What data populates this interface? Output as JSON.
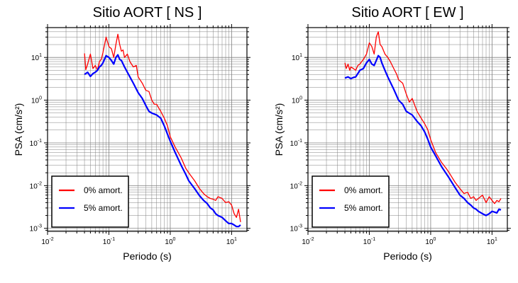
{
  "chart_data": [
    {
      "type": "line",
      "title": "Sitio AORT [ NS ]",
      "xlabel": "Periodo (s)",
      "ylabel": "PSA (cm/s²)",
      "x_scale": "log",
      "y_scale": "log",
      "xlim": [
        0.01,
        17.78
      ],
      "ylim": [
        0.00085,
        50
      ],
      "x_ticks": [
        {
          "base": "10",
          "exp": "-2"
        },
        {
          "base": "10",
          "exp": "-1"
        },
        {
          "base": "10",
          "exp": "0"
        },
        {
          "base": "10",
          "exp": "1"
        }
      ],
      "y_ticks": [
        {
          "base": "10",
          "exp": "-3"
        },
        {
          "base": "10",
          "exp": "-2"
        },
        {
          "base": "10",
          "exp": "-1"
        },
        {
          "base": "10",
          "exp": "0"
        },
        {
          "base": "10",
          "exp": "1"
        }
      ],
      "grid": true,
      "legend": "bottom-left",
      "series": [
        {
          "name": "0% amort.",
          "color": "#ff0000",
          "x": [
            0.04,
            0.042,
            0.045,
            0.05,
            0.055,
            0.06,
            0.065,
            0.07,
            0.075,
            0.08,
            0.09,
            0.1,
            0.11,
            0.12,
            0.13,
            0.14,
            0.15,
            0.16,
            0.17,
            0.18,
            0.2,
            0.22,
            0.25,
            0.28,
            0.3,
            0.35,
            0.4,
            0.45,
            0.5,
            0.55,
            0.6,
            0.7,
            0.8,
            0.9,
            1.0,
            1.2,
            1.5,
            1.8,
            2.0,
            2.5,
            3.0,
            3.5,
            4.0,
            4.5,
            5.0,
            5.5,
            6.0,
            7.0,
            8.0,
            9.0,
            10.0,
            11.0,
            12.0,
            13.0,
            14.0
          ],
          "y": [
            12.5,
            5.2,
            7.0,
            12.0,
            5.5,
            6.5,
            5.0,
            8.0,
            9.0,
            13.0,
            30.0,
            18.0,
            16.0,
            10.0,
            20.0,
            35.0,
            20.0,
            14.0,
            15.0,
            10.0,
            12.0,
            8.0,
            6.0,
            6.5,
            3.5,
            2.5,
            1.7,
            1.6,
            1.0,
            0.8,
            0.8,
            0.55,
            0.38,
            0.25,
            0.14,
            0.08,
            0.045,
            0.025,
            0.02,
            0.013,
            0.0085,
            0.0065,
            0.0055,
            0.005,
            0.0048,
            0.0045,
            0.0055,
            0.005,
            0.004,
            0.0042,
            0.0035,
            0.0022,
            0.0018,
            0.0028,
            0.0014
          ]
        },
        {
          "name": "5% amort.",
          "color": "#0000ff",
          "x": [
            0.04,
            0.045,
            0.05,
            0.055,
            0.06,
            0.065,
            0.07,
            0.075,
            0.08,
            0.09,
            0.1,
            0.11,
            0.12,
            0.13,
            0.14,
            0.15,
            0.16,
            0.18,
            0.2,
            0.25,
            0.3,
            0.35,
            0.4,
            0.45,
            0.5,
            0.6,
            0.7,
            0.8,
            0.9,
            1.0,
            1.2,
            1.5,
            1.8,
            2.0,
            2.5,
            3.0,
            3.5,
            4.0,
            4.5,
            5.0,
            5.5,
            6.0,
            7.0,
            8.0,
            9.0,
            10.0,
            11.0,
            12.0,
            13.0,
            14.0
          ],
          "y": [
            4.0,
            4.5,
            3.6,
            4.2,
            4.5,
            5.0,
            6.0,
            6.5,
            7.5,
            11.0,
            10.0,
            8.5,
            7.0,
            10.0,
            11.5,
            9.0,
            8.5,
            6.0,
            4.5,
            2.5,
            1.5,
            1.1,
            0.75,
            0.55,
            0.5,
            0.45,
            0.38,
            0.25,
            0.16,
            0.11,
            0.06,
            0.03,
            0.018,
            0.013,
            0.0085,
            0.0058,
            0.0045,
            0.0038,
            0.003,
            0.0027,
            0.0022,
            0.002,
            0.0018,
            0.0015,
            0.0013,
            0.0013,
            0.0012,
            0.0011,
            0.0011,
            0.0012
          ]
        }
      ]
    },
    {
      "type": "line",
      "title": "Sitio AORT [ EW ]",
      "xlabel": "Periodo (s)",
      "ylabel": "PSA (cm/s²)",
      "x_scale": "log",
      "y_scale": "log",
      "xlim": [
        0.01,
        17.78
      ],
      "ylim": [
        0.00085,
        50
      ],
      "x_ticks": [
        {
          "base": "10",
          "exp": "-2"
        },
        {
          "base": "10",
          "exp": "-1"
        },
        {
          "base": "10",
          "exp": "0"
        },
        {
          "base": "10",
          "exp": "1"
        }
      ],
      "y_ticks": [
        {
          "base": "10",
          "exp": "-3"
        },
        {
          "base": "10",
          "exp": "-2"
        },
        {
          "base": "10",
          "exp": "-1"
        },
        {
          "base": "10",
          "exp": "0"
        },
        {
          "base": "10",
          "exp": "1"
        }
      ],
      "grid": true,
      "legend": "bottom-left",
      "series": [
        {
          "name": "0% amort.",
          "color": "#ff0000",
          "x": [
            0.04,
            0.042,
            0.045,
            0.048,
            0.05,
            0.055,
            0.06,
            0.065,
            0.07,
            0.075,
            0.08,
            0.09,
            0.1,
            0.11,
            0.12,
            0.13,
            0.14,
            0.15,
            0.16,
            0.18,
            0.2,
            0.22,
            0.25,
            0.28,
            0.3,
            0.35,
            0.4,
            0.45,
            0.5,
            0.6,
            0.7,
            0.8,
            0.9,
            1.0,
            1.2,
            1.5,
            1.8,
            2.0,
            2.5,
            3.0,
            3.5,
            4.0,
            4.5,
            5.0,
            5.5,
            6.0,
            7.0,
            8.0,
            9.0,
            10.0,
            11.0,
            12.0,
            13.0,
            14.0
          ],
          "y": [
            7.5,
            5.5,
            7.0,
            5.0,
            6.0,
            5.5,
            5.0,
            6.5,
            7.0,
            8.0,
            9.0,
            12.0,
            22.0,
            18.0,
            12.0,
            30.0,
            40.0,
            20.0,
            18.0,
            12.0,
            10.0,
            8.0,
            5.5,
            4.0,
            3.0,
            2.5,
            1.4,
            0.9,
            1.1,
            0.55,
            0.38,
            0.28,
            0.2,
            0.12,
            0.06,
            0.035,
            0.025,
            0.02,
            0.012,
            0.0085,
            0.0065,
            0.007,
            0.005,
            0.0055,
            0.0045,
            0.005,
            0.006,
            0.004,
            0.0055,
            0.0045,
            0.0038,
            0.0045,
            0.0042,
            0.005
          ]
        },
        {
          "name": "5% amort.",
          "color": "#0000ff",
          "x": [
            0.04,
            0.045,
            0.05,
            0.055,
            0.06,
            0.065,
            0.07,
            0.08,
            0.09,
            0.1,
            0.11,
            0.12,
            0.13,
            0.14,
            0.15,
            0.16,
            0.18,
            0.2,
            0.25,
            0.3,
            0.35,
            0.4,
            0.5,
            0.6,
            0.7,
            0.8,
            0.9,
            1.0,
            1.2,
            1.5,
            2.0,
            2.5,
            3.0,
            3.5,
            4.0,
            4.5,
            5.0,
            5.5,
            6.0,
            7.0,
            8.0,
            9.0,
            10.0,
            11.0,
            12.0,
            13.0,
            14.0
          ],
          "y": [
            3.3,
            3.5,
            3.2,
            3.4,
            3.5,
            4.2,
            5.0,
            5.5,
            7.5,
            9.0,
            7.0,
            6.5,
            8.5,
            11.0,
            10.0,
            7.5,
            5.0,
            3.5,
            1.8,
            1.0,
            0.8,
            0.55,
            0.45,
            0.32,
            0.25,
            0.18,
            0.12,
            0.08,
            0.05,
            0.028,
            0.015,
            0.009,
            0.006,
            0.005,
            0.004,
            0.0035,
            0.003,
            0.0028,
            0.0025,
            0.0022,
            0.002,
            0.0022,
            0.0025,
            0.0024,
            0.0023,
            0.0028,
            0.0027
          ]
        }
      ]
    }
  ]
}
